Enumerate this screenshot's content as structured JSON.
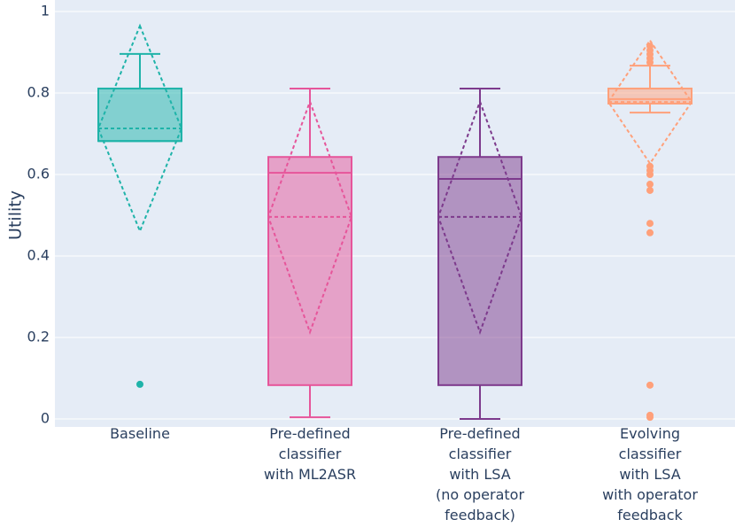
{
  "chart_data": {
    "type": "box",
    "y_label": "Utility",
    "categories": [
      "Baseline",
      "Pre-defined\nclassifier\nwith ML2ASR",
      "Pre-defined\nclassifier\nwith LSA\n(no operator\nfeedback)",
      "Evolving\nclassifier\nwith LSA\nwith operator\nfeedback"
    ],
    "boxes": [
      {
        "color": "#1fb3a9",
        "min": 0.682,
        "q1": 0.682,
        "median": 0.682,
        "q3": 0.811,
        "max": 0.896,
        "mean": 0.713,
        "sd": 0.252,
        "outliers": [
          0.085
        ]
      },
      {
        "color": "#e6559a",
        "min": 0.004,
        "q1": 0.083,
        "median": 0.604,
        "q3": 0.643,
        "max": 0.811,
        "mean": 0.496,
        "sd": 0.283,
        "outliers": []
      },
      {
        "color": "#7d3a8c",
        "min": 0,
        "q1": 0.083,
        "median": 0.589,
        "q3": 0.643,
        "max": 0.811,
        "mean": 0.496,
        "sd": 0.283,
        "outliers": []
      },
      {
        "color": "#ffa07a",
        "min": 0.752,
        "q1": 0.774,
        "median": 0.785,
        "q3": 0.811,
        "max": 0.867,
        "mean": 0.778,
        "sd": 0.151,
        "outliers": [
          0.875,
          0.885,
          0.895,
          0.905,
          0.915,
          0.62,
          0.61,
          0.6,
          0.576,
          0.561,
          0.48,
          0.457,
          0.083,
          0.009,
          0.004
        ]
      }
    ],
    "ylim": [
      0,
      1
    ],
    "yticks": [
      0,
      0.2,
      0.4,
      0.6,
      0.8,
      1
    ],
    "grid": true
  }
}
